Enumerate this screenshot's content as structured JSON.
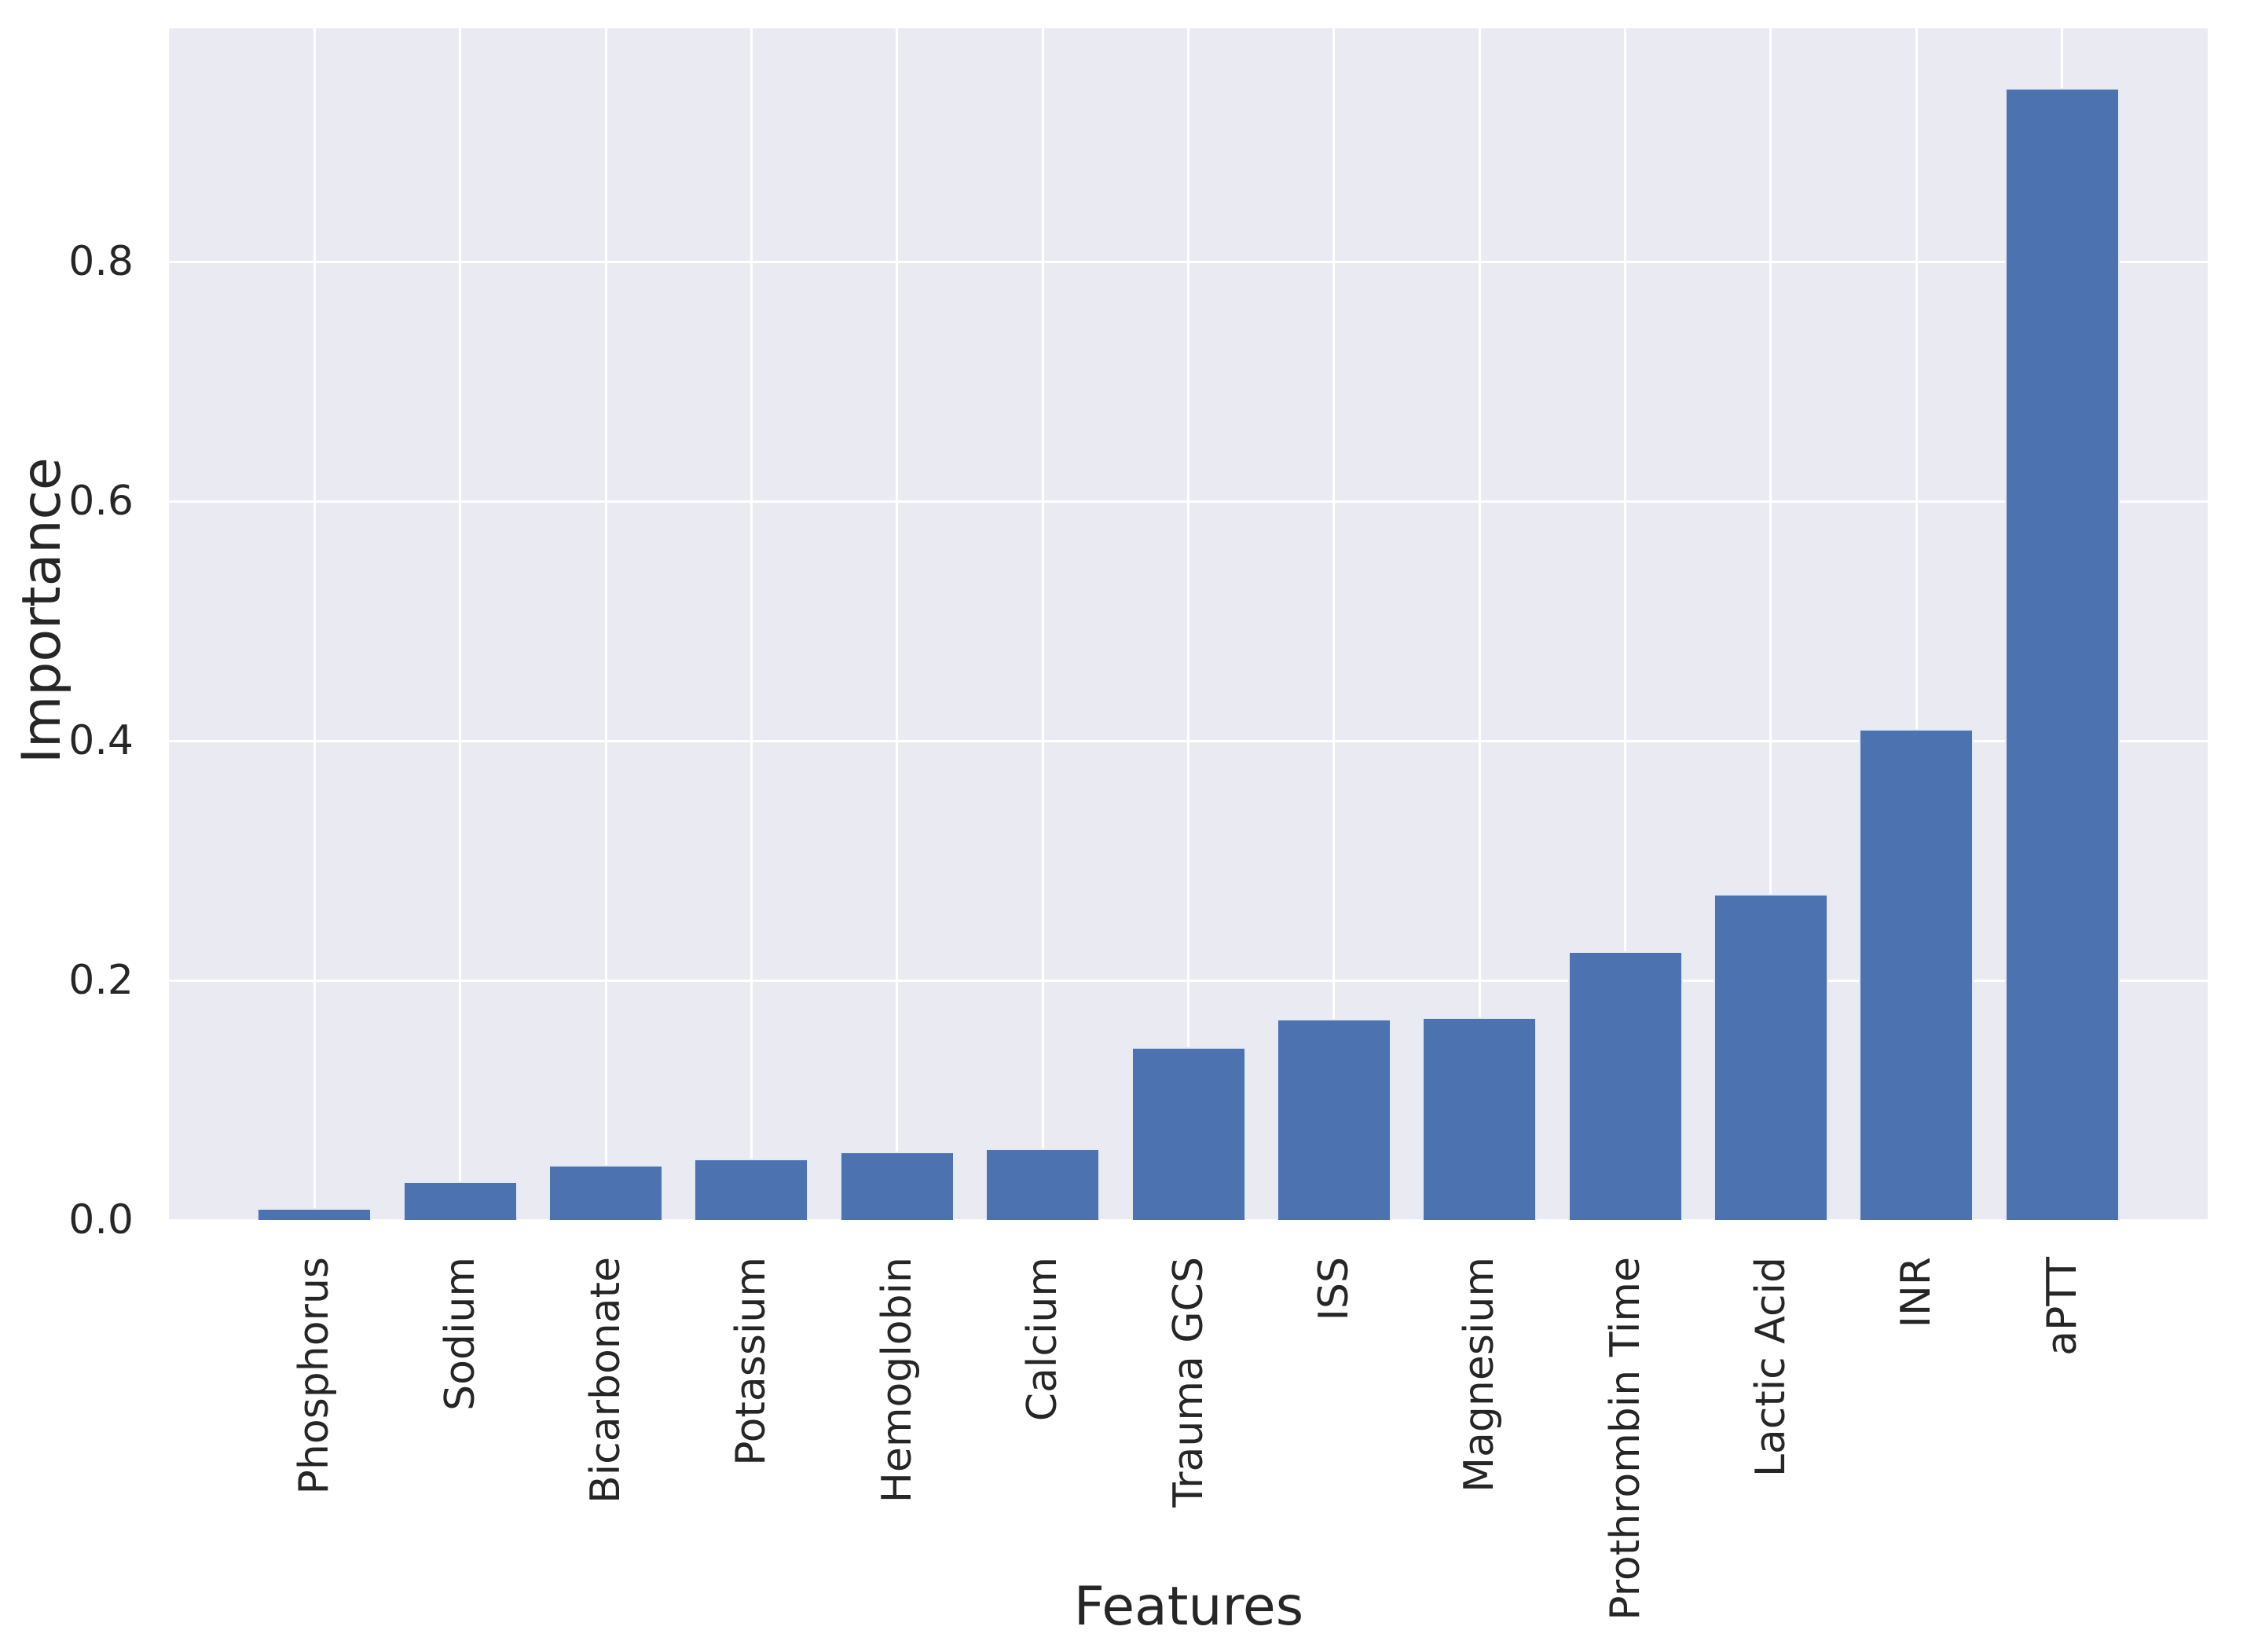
{
  "chart_data": {
    "type": "bar",
    "title": "",
    "xlabel": "Features",
    "ylabel": "Importance",
    "categories": [
      "Phosphorus",
      "Sodium",
      "Bicarbonate",
      "Potassium",
      "Hemoglobin",
      "Calcium",
      "Trauma GCS",
      "ISS",
      "Magnesium",
      "Prothrombin Time",
      "Lactic Acid",
      "INR",
      "aPTT"
    ],
    "values": [
      0.01,
      0.032,
      0.046,
      0.051,
      0.057,
      0.06,
      0.144,
      0.168,
      0.169,
      0.224,
      0.272,
      0.41,
      0.945
    ],
    "ytick_labels": [
      "0.0",
      "0.2",
      "0.4",
      "0.6",
      "0.8"
    ],
    "ytick_values": [
      0.0,
      0.2,
      0.4,
      0.6,
      0.8
    ],
    "ylim": [
      0,
      0.995
    ],
    "grid": true,
    "legend_visible": false,
    "bar_orientation": "vertical",
    "xtick_rotation_deg": 90,
    "colors": {
      "bar": "#4C72B0",
      "plot_background": "#EAEAF2",
      "gridline": "#FFFFFF",
      "text": "#262626",
      "figure_background": "#FFFFFF"
    }
  }
}
